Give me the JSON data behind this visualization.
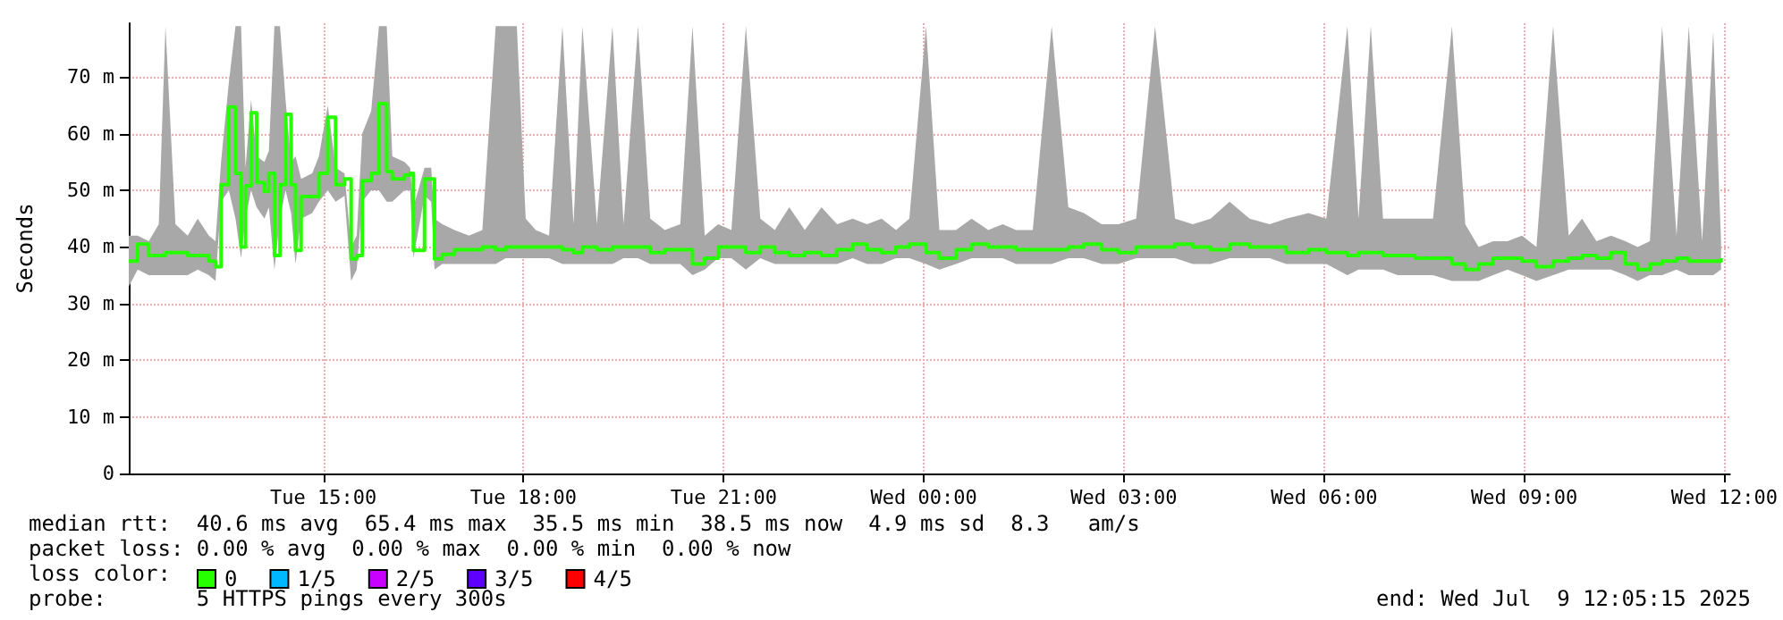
{
  "chart_data": {
    "type": "step",
    "ylabel": "Seconds",
    "legend_title": "loss color:",
    "legend": "bottom",
    "grid": true,
    "xlim": [
      "2025-07-08T12:05",
      "2025-07-09T12:05"
    ],
    "xticks": [
      {
        "value": "2025-07-08T15:00",
        "label": "Tue 15:00"
      },
      {
        "value": "2025-07-08T18:00",
        "label": "Tue 18:00"
      },
      {
        "value": "2025-07-08T21:00",
        "label": "Tue 21:00"
      },
      {
        "value": "2025-07-09T00:00",
        "label": "Wed 00:00"
      },
      {
        "value": "2025-07-09T03:00",
        "label": "Wed 03:00"
      },
      {
        "value": "2025-07-09T06:00",
        "label": "Wed 06:00"
      },
      {
        "value": "2025-07-09T09:00",
        "label": "Wed 09:00"
      },
      {
        "value": "2025-07-09T12:00",
        "label": "Wed 12:00"
      }
    ],
    "ylim": [
      0,
      79.5
    ],
    "yticks": [
      0,
      {
        "value": 10,
        "label": "10 m"
      },
      {
        "value": 20,
        "label": "20 m"
      },
      {
        "value": 30,
        "label": "30 m"
      },
      {
        "value": 40,
        "label": "40 m"
      },
      {
        "value": 50,
        "label": "50 m"
      },
      {
        "value": 60,
        "label": "60 m"
      },
      {
        "value": 70,
        "label": "70 m"
      }
    ],
    "annotations": [
      "median rtt:  40.6 ms avg  65.4 ms max  35.5 ms min  38.5 ms now  4.9 ms sd  8.3   am/s",
      "packet loss: 0.00 % avg  0.00 % max  0.00 % min  0.00 % now",
      "probe:       5 HTTPS pings every 300s",
      "end: Wed Jul  9 12:05:15 2025"
    ],
    "x": [
      "2025-07-08T12:05",
      "2025-07-08T12:13",
      "2025-07-08T12:23",
      "2025-07-08T12:32",
      "2025-07-08T12:38",
      "2025-07-08T12:47",
      "2025-07-08T12:58",
      "2025-07-08T13:07",
      "2025-07-08T13:17",
      "2025-07-08T13:23",
      "2025-07-08T13:28",
      "2025-07-08T13:35",
      "2025-07-08T13:41",
      "2025-07-08T13:46",
      "2025-07-08T13:50",
      "2025-07-08T13:55",
      "2025-07-08T14:00",
      "2025-07-08T14:07",
      "2025-07-08T14:11",
      "2025-07-08T14:16",
      "2025-07-08T14:21",
      "2025-07-08T14:26",
      "2025-07-08T14:31",
      "2025-07-08T14:35",
      "2025-07-08T14:40",
      "2025-07-08T14:50",
      "2025-07-08T14:56",
      "2025-07-08T15:04",
      "2025-07-08T15:11",
      "2025-07-08T15:19",
      "2025-07-08T15:25",
      "2025-07-08T15:30",
      "2025-07-08T15:35",
      "2025-07-08T15:43",
      "2025-07-08T15:50",
      "2025-07-08T15:57",
      "2025-07-08T16:02",
      "2025-07-08T16:13",
      "2025-07-08T16:18",
      "2025-07-08T16:21",
      "2025-07-08T16:31",
      "2025-07-08T16:37",
      "2025-07-08T16:40",
      "2025-07-08T16:47",
      "2025-07-08T16:58",
      "2025-07-08T17:11",
      "2025-07-08T17:23",
      "2025-07-08T17:35",
      "2025-07-08T17:44",
      "2025-07-08T17:54",
      "2025-07-08T18:02",
      "2025-07-08T18:11",
      "2025-07-08T18:23",
      "2025-07-08T18:35",
      "2025-07-08T18:45",
      "2025-07-08T18:53",
      "2025-07-08T19:06",
      "2025-07-08T19:20",
      "2025-07-08T19:30",
      "2025-07-08T19:43",
      "2025-07-08T19:54",
      "2025-07-08T20:07",
      "2025-07-08T20:21",
      "2025-07-08T20:32",
      "2025-07-08T20:43",
      "2025-07-08T20:55",
      "2025-07-08T21:07",
      "2025-07-08T21:20",
      "2025-07-08T21:33",
      "2025-07-08T21:46",
      "2025-07-08T21:59",
      "2025-07-08T22:13",
      "2025-07-08T22:28",
      "2025-07-08T22:42",
      "2025-07-08T22:56",
      "2025-07-08T23:09",
      "2025-07-08T23:22",
      "2025-07-08T23:35",
      "2025-07-08T23:47",
      "2025-07-09T00:02",
      "2025-07-09T00:14",
      "2025-07-09T00:29",
      "2025-07-09T00:43",
      "2025-07-09T00:58",
      "2025-07-09T01:11",
      "2025-07-09T01:23",
      "2025-07-09T01:38",
      "2025-07-09T01:55",
      "2025-07-09T02:10",
      "2025-07-09T02:24",
      "2025-07-09T02:40",
      "2025-07-09T02:55",
      "2025-07-09T03:11",
      "2025-07-09T03:28",
      "2025-07-09T03:46",
      "2025-07-09T04:02",
      "2025-07-09T04:18",
      "2025-07-09T04:35",
      "2025-07-09T04:53",
      "2025-07-09T05:11",
      "2025-07-09T05:26",
      "2025-07-09T05:46",
      "2025-07-09T06:02",
      "2025-07-09T06:21",
      "2025-07-09T06:31",
      "2025-07-09T06:42",
      "2025-07-09T06:53",
      "2025-07-09T07:06",
      "2025-07-09T07:22",
      "2025-07-09T07:38",
      "2025-07-09T07:55",
      "2025-07-09T08:07",
      "2025-07-09T08:19",
      "2025-07-09T08:32",
      "2025-07-09T08:45",
      "2025-07-09T08:58",
      "2025-07-09T09:11",
      "2025-07-09T09:26",
      "2025-07-09T09:40",
      "2025-07-09T09:52",
      "2025-07-09T10:05",
      "2025-07-09T10:18",
      "2025-07-09T10:31",
      "2025-07-09T10:42",
      "2025-07-09T10:53",
      "2025-07-09T11:04",
      "2025-07-09T11:17",
      "2025-07-09T11:28",
      "2025-07-09T11:40",
      "2025-07-09T11:50",
      "2025-07-09T11:57"
    ],
    "series": [
      {
        "name": "0",
        "color": "#26ff00",
        "values": [
          37.5,
          40.5,
          38.5,
          38.5,
          39,
          39,
          38.5,
          38.5,
          37.5,
          36.5,
          51,
          64.7,
          53,
          40,
          50.8,
          63.7,
          51.4,
          49.8,
          53,
          38.5,
          51,
          63.4,
          51,
          39.4,
          48.9,
          48.9,
          53,
          62.9,
          51,
          52,
          37.9,
          38.5,
          51.7,
          53,
          65.3,
          53.3,
          52,
          52.7,
          53,
          39.4,
          52,
          52,
          37.9,
          38.7,
          39.5,
          39.5,
          40,
          39.5,
          40,
          40,
          40,
          40,
          40,
          39.5,
          39,
          40,
          39.5,
          40,
          40,
          40,
          39,
          39.5,
          39.5,
          37,
          38,
          40,
          40,
          39,
          40,
          39,
          38.5,
          39,
          38.5,
          39.5,
          40.5,
          39.5,
          39,
          40,
          40.5,
          39,
          38,
          39.5,
          40.5,
          40,
          40,
          39.5,
          39.5,
          39.5,
          40,
          40.5,
          39.5,
          39,
          40,
          40,
          40.5,
          40,
          39.5,
          40.5,
          40,
          40,
          39,
          39.5,
          39,
          38.5,
          39,
          39,
          38.5,
          38.5,
          38,
          38,
          37,
          36,
          37,
          38,
          38,
          37.5,
          36.5,
          37.5,
          38,
          38.5,
          38,
          39,
          37,
          36,
          37,
          37.5,
          38,
          37.5,
          37.5,
          37.5,
          38
        ],
        "lower": [
          33,
          36,
          35,
          35,
          35,
          35,
          35,
          36,
          35,
          34,
          48,
          50,
          45,
          38,
          45,
          50,
          47,
          45,
          47,
          36,
          45,
          50,
          46,
          37,
          45,
          46,
          48,
          50,
          48,
          49,
          34,
          36,
          48,
          50,
          50,
          48,
          48,
          50,
          50,
          38,
          49,
          48,
          36,
          37,
          37,
          37,
          37,
          37,
          38,
          38,
          38,
          38,
          38,
          37,
          37,
          37,
          37,
          37,
          38,
          38,
          37,
          37,
          37,
          35,
          36,
          38,
          38,
          36,
          38,
          37,
          37,
          37,
          37,
          37,
          38,
          37,
          37,
          38,
          38,
          37,
          36,
          37,
          38,
          38,
          38,
          37,
          37,
          37,
          38,
          38,
          37,
          37,
          38,
          38,
          38,
          37,
          37,
          38,
          38,
          38,
          37,
          37,
          37,
          35,
          36,
          36,
          36,
          35,
          35,
          35,
          34,
          34,
          34,
          35,
          36,
          35,
          34,
          35,
          36,
          36,
          36,
          36,
          35,
          34,
          35,
          35,
          36,
          35,
          35,
          35,
          36
        ],
        "upper": [
          42,
          42,
          41,
          44,
          79,
          44,
          42,
          45,
          42,
          41,
          55,
          69,
          79,
          79,
          54,
          66,
          56,
          55,
          57,
          79,
          79,
          66,
          55,
          56,
          52,
          53,
          56,
          65,
          54,
          53,
          40,
          42,
          60,
          64,
          79,
          79,
          56,
          55,
          54,
          47,
          54,
          54,
          45,
          44,
          43,
          42,
          43,
          79,
          79,
          79,
          45,
          43,
          42,
          79,
          44,
          79,
          44,
          79,
          44,
          79,
          45,
          43,
          44,
          79,
          42,
          44,
          43,
          79,
          45,
          43,
          47,
          43,
          47,
          44,
          45,
          44,
          45,
          43,
          45,
          79,
          43,
          43,
          45,
          43,
          44,
          43,
          43,
          79,
          47,
          46,
          44,
          44,
          45,
          79,
          45,
          44,
          45,
          48,
          45,
          44,
          45,
          46,
          45,
          79,
          45,
          79,
          45,
          45,
          45,
          45,
          79,
          44,
          40,
          41,
          41,
          42,
          40,
          79,
          42,
          45,
          41,
          42,
          41,
          40,
          41,
          79,
          42,
          79,
          41,
          78,
          41
        ]
      },
      {
        "name": "1/5",
        "color": "#00b8ff",
        "values": [
          null,
          null,
          null,
          null,
          null,
          null,
          null,
          null,
          null,
          null,
          null,
          null,
          null,
          null,
          null,
          null,
          null,
          null,
          null,
          null,
          null,
          null,
          null,
          null,
          null,
          null,
          null,
          null,
          null,
          null,
          null,
          null,
          null,
          null,
          null,
          null,
          null,
          null,
          null,
          null,
          null,
          null,
          null,
          null,
          null,
          null,
          null,
          null,
          null,
          null,
          null,
          null,
          null,
          null,
          null,
          null,
          null,
          null,
          null,
          null,
          null,
          null,
          null,
          null,
          null,
          null,
          null,
          null,
          null,
          null,
          null,
          null,
          null,
          null,
          null,
          null,
          null,
          null,
          null,
          null,
          null,
          null,
          null,
          null,
          null,
          null,
          null,
          null,
          null,
          null,
          null,
          null,
          null,
          null,
          null,
          null,
          null,
          null,
          null,
          null,
          null,
          null,
          null,
          null,
          null,
          null,
          null,
          null,
          null,
          null,
          null,
          null,
          null,
          null,
          null,
          null,
          null,
          null,
          null,
          null,
          null,
          null,
          null,
          null,
          null,
          null,
          null,
          null,
          null,
          null,
          null
        ]
      },
      {
        "name": "2/5",
        "color": "#c800ff",
        "values": [
          null,
          null,
          null,
          null,
          null,
          null,
          null,
          null,
          null,
          null,
          null,
          null,
          null,
          null,
          null,
          null,
          null,
          null,
          null,
          null,
          null,
          null,
          null,
          null,
          null,
          null,
          null,
          null,
          null,
          null,
          null,
          null,
          null,
          null,
          null,
          null,
          null,
          null,
          null,
          null,
          null,
          null,
          null,
          null,
          null,
          null,
          null,
          null,
          null,
          null,
          null,
          null,
          null,
          null,
          null,
          null,
          null,
          null,
          null,
          null,
          null,
          null,
          null,
          null,
          null,
          null,
          null,
          null,
          null,
          null,
          null,
          null,
          null,
          null,
          null,
          null,
          null,
          null,
          null,
          null,
          null,
          null,
          null,
          null,
          null,
          null,
          null,
          null,
          null,
          null,
          null,
          null,
          null,
          null,
          null,
          null,
          null,
          null,
          null,
          null,
          null,
          null,
          null,
          null,
          null,
          null,
          null,
          null,
          null,
          null,
          null,
          null,
          null,
          null,
          null,
          null,
          null,
          null,
          null,
          null,
          null,
          null,
          null,
          null,
          null,
          null,
          null,
          null,
          null,
          null,
          null
        ]
      },
      {
        "name": "3/5",
        "color": "#5e00ff",
        "values": [
          null,
          null,
          null,
          null,
          null,
          null,
          null,
          null,
          null,
          null,
          null,
          null,
          null,
          null,
          null,
          null,
          null,
          null,
          null,
          null,
          null,
          null,
          null,
          null,
          null,
          null,
          null,
          null,
          null,
          null,
          null,
          null,
          null,
          null,
          null,
          null,
          null,
          null,
          null,
          null,
          null,
          null,
          null,
          null,
          null,
          null,
          null,
          null,
          null,
          null,
          null,
          null,
          null,
          null,
          null,
          null,
          null,
          null,
          null,
          null,
          null,
          null,
          null,
          null,
          null,
          null,
          null,
          null,
          null,
          null,
          null,
          null,
          null,
          null,
          null,
          null,
          null,
          null,
          null,
          null,
          null,
          null,
          null,
          null,
          null,
          null,
          null,
          null,
          null,
          null,
          null,
          null,
          null,
          null,
          null,
          null,
          null,
          null,
          null,
          null,
          null,
          null,
          null,
          null,
          null,
          null,
          null,
          null,
          null,
          null,
          null,
          null,
          null,
          null,
          null,
          null,
          null,
          null,
          null,
          null,
          null,
          null,
          null,
          null,
          null,
          null,
          null,
          null,
          null,
          null,
          null
        ]
      },
      {
        "name": "4/5",
        "color": "#ff0000",
        "values": [
          null,
          null,
          null,
          null,
          null,
          null,
          null,
          null,
          null,
          null,
          null,
          null,
          null,
          null,
          null,
          null,
          null,
          null,
          null,
          null,
          null,
          null,
          null,
          null,
          null,
          null,
          null,
          null,
          null,
          null,
          null,
          null,
          null,
          null,
          null,
          null,
          null,
          null,
          null,
          null,
          null,
          null,
          null,
          null,
          null,
          null,
          null,
          null,
          null,
          null,
          null,
          null,
          null,
          null,
          null,
          null,
          null,
          null,
          null,
          null,
          null,
          null,
          null,
          null,
          null,
          null,
          null,
          null,
          null,
          null,
          null,
          null,
          null,
          null,
          null,
          null,
          null,
          null,
          null,
          null,
          null,
          null,
          null,
          null,
          null,
          null,
          null,
          null,
          null,
          null,
          null,
          null,
          null,
          null,
          null,
          null,
          null,
          null,
          null,
          null,
          null,
          null,
          null,
          null,
          null,
          null,
          null,
          null,
          null,
          null,
          null,
          null,
          null,
          null,
          null,
          null,
          null,
          null,
          null,
          null,
          null,
          null,
          null,
          null,
          null,
          null,
          null,
          null,
          null,
          null,
          null
        ]
      }
    ]
  }
}
